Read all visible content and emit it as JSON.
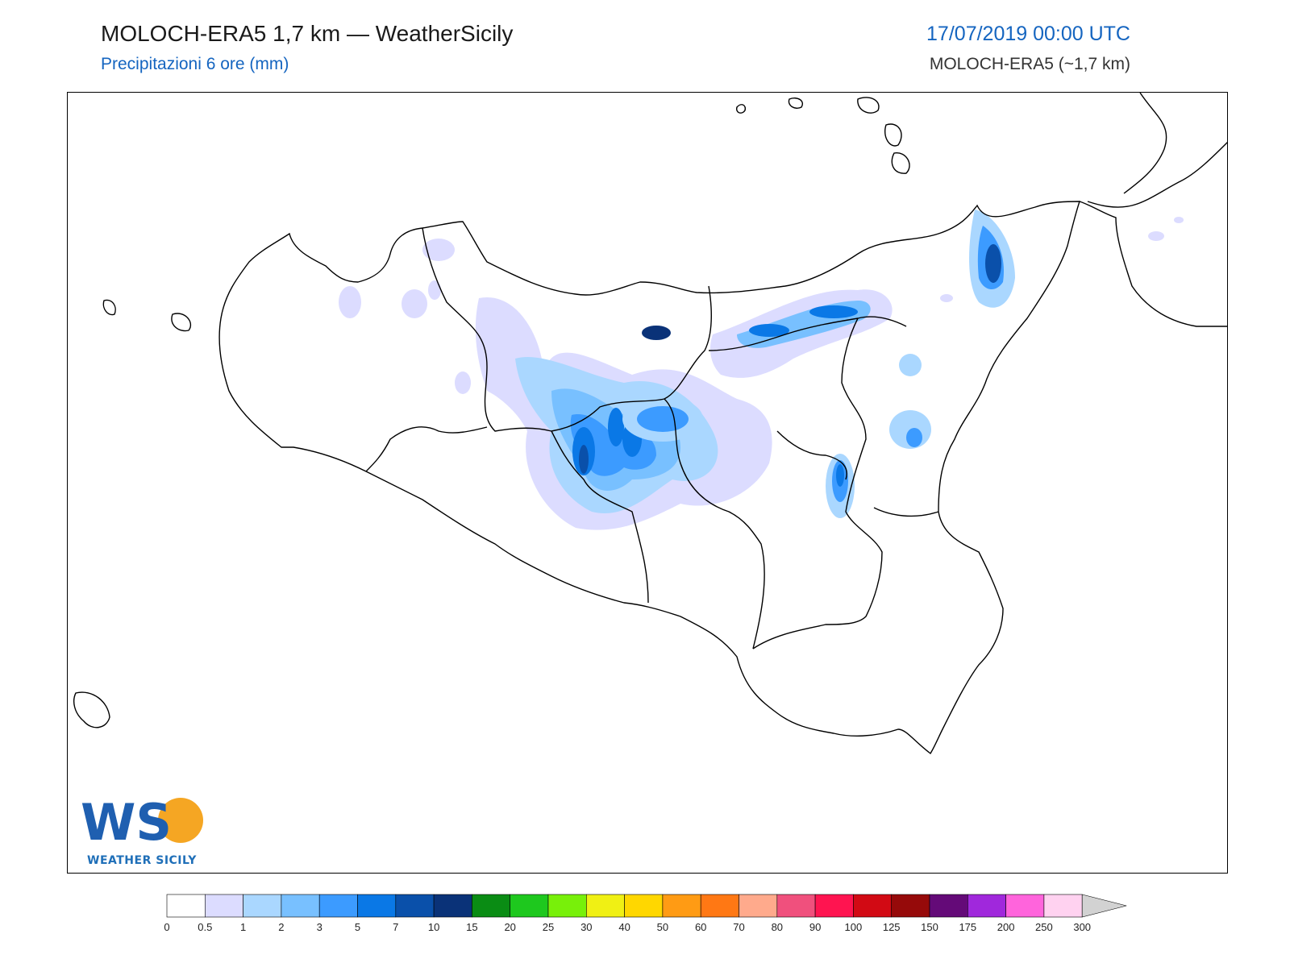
{
  "header": {
    "title": "MOLOCH-ERA5 1,7 km — WeatherSicily",
    "subtitle": "Precipitazioni 6 ore (mm)",
    "datetime": "17/07/2019 00:00 UTC",
    "model": "MOLOCH-ERA5 (~1,7 km)"
  },
  "logo": {
    "text": "WEATHER SICILY",
    "letters": "WS"
  },
  "colorbar": {
    "levels": [
      "0",
      "0.5",
      "1",
      "2",
      "3",
      "5",
      "7",
      "10",
      "15",
      "20",
      "25",
      "30",
      "40",
      "50",
      "60",
      "70",
      "80",
      "90",
      "100",
      "125",
      "150",
      "175",
      "200",
      "250",
      "300"
    ],
    "colors": [
      "#ffffff",
      "#dcdcff",
      "#aad7ff",
      "#78c0ff",
      "#3c9bff",
      "#0a78e6",
      "#0a50aa",
      "#0a3278",
      "#0a8c14",
      "#1ec81e",
      "#78f00a",
      "#f0f014",
      "#ffd700",
      "#ff9b14",
      "#ff7814",
      "#ffaa8c",
      "#f0507d",
      "#ff1450",
      "#d20a14",
      "#960a0a",
      "#640a78",
      "#a028dc",
      "#ff64dc",
      "#ffd2f0"
    ],
    "extend_color": "#d2d2d2"
  },
  "precip_colors": {
    "light": "#dcdcff",
    "l1": "#aad7ff",
    "l2": "#78c0ff",
    "l3": "#3c9bff",
    "l5": "#0a78e6",
    "l7": "#0a50aa",
    "l10": "#0a3278"
  }
}
